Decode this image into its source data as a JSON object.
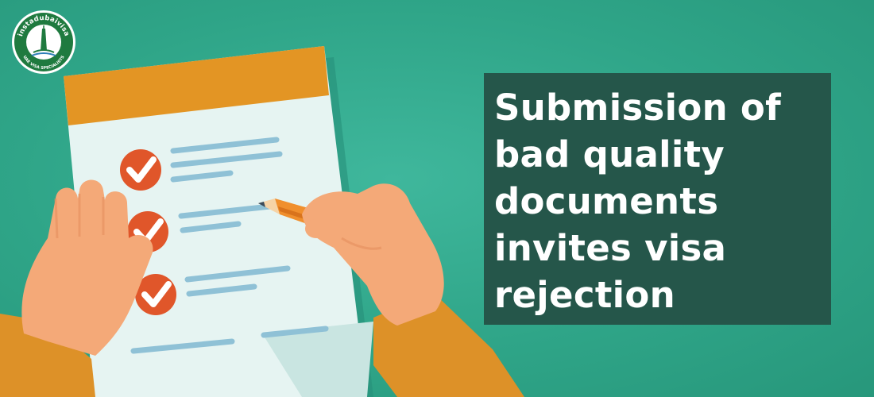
{
  "logo": {
    "brand_text": "instadubaivisa",
    "tagline": "UAE VISA SPECIALISTS"
  },
  "headline": {
    "text": "Submission of bad quality documents invites visa rejection"
  },
  "illustration": {
    "checklist_items_checked": 3,
    "colors": {
      "background": "#2fa588",
      "paper": "#e6f4f2",
      "paper_header": "#e39524",
      "check_circle": "#e0562a",
      "skin": "#f4a978",
      "sleeve": "#dd9128",
      "pencil": "#f08f2d",
      "headline_box": "#25564a"
    }
  }
}
